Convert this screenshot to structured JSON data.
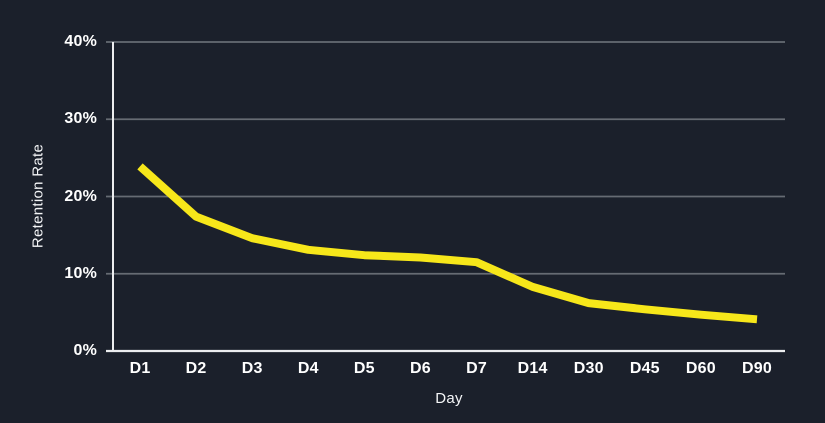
{
  "chart": {
    "background_color": "#1B202B",
    "grid_color": "#666B73",
    "axis_color": "#ECEDEF",
    "text_color": "#FFFFFF",
    "line_color": "#F7E71A"
  },
  "chart_data": {
    "type": "line",
    "title": "",
    "xlabel": "Day",
    "ylabel": "Retention Rate",
    "categories": [
      "D1",
      "D2",
      "D3",
      "D4",
      "D5",
      "D6",
      "D7",
      "D14",
      "D30",
      "D45",
      "D60",
      "D90"
    ],
    "values": [
      23.9,
      17.4,
      14.6,
      13.1,
      12.4,
      12.1,
      11.5,
      8.3,
      6.2,
      5.4,
      4.7,
      4.1
    ],
    "series": [
      {
        "name": "Retention Rate",
        "values": [
          23.9,
          17.4,
          14.6,
          13.1,
          12.4,
          12.1,
          11.5,
          8.3,
          6.2,
          5.4,
          4.7,
          4.1
        ]
      }
    ],
    "ylim": [
      0,
      40
    ],
    "yticks": [
      0,
      10,
      20,
      30,
      40
    ],
    "ytick_labels": [
      "0%",
      "10%",
      "20%",
      "30%",
      "40%"
    ],
    "grid": true,
    "legend": false,
    "legend_position": "none"
  }
}
